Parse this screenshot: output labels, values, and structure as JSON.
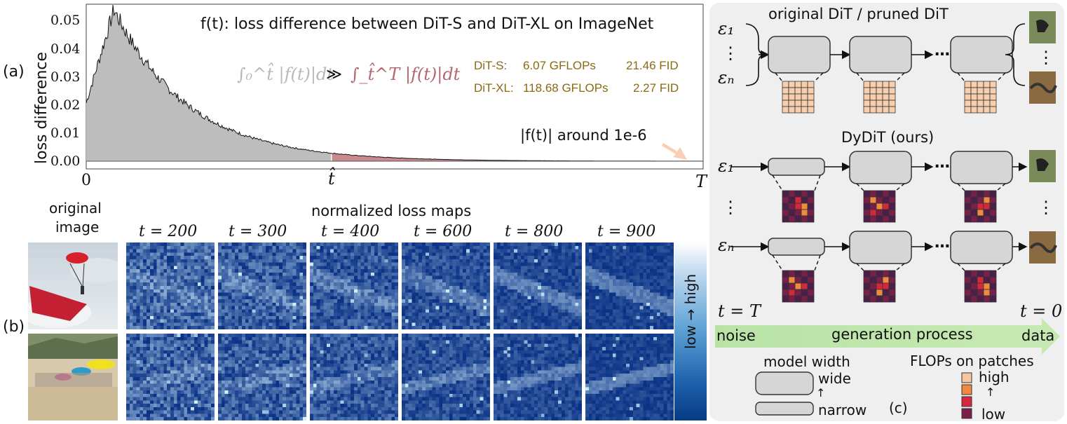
{
  "panel_labels": {
    "a": "(a)",
    "b": "(b)",
    "c": "(c)"
  },
  "panel_a": {
    "ylabel": "loss difference",
    "y_ticks": [
      "0.00",
      "0.01",
      "0.02",
      "0.03",
      "0.04",
      "0.05"
    ],
    "x_ticks": [
      "0",
      "t̂",
      "T"
    ],
    "title": "f(t): loss difference between DiT-S and DiT-XL on ImageNet",
    "integral_left": "∫₀^t̂ |f(t)|dt",
    "much_greater": "≫",
    "integral_right": "∫_t̂^T |f(t)|dt",
    "stats": [
      {
        "model": "DiT-S:",
        "gflops": "6.07 GFLOPs",
        "fid": "21.46 FID"
      },
      {
        "model": "DiT-XL:",
        "gflops": "118.68 GFLOPs",
        "fid": "2.27 FID"
      }
    ],
    "tail_note": "|f(t)| around 1e-6",
    "colors": {
      "early_fill": "#bdbdbd",
      "late_fill": "#c98a8f",
      "stats_text": "#8a6a10",
      "arrow": "#f5c9a8"
    }
  },
  "panel_b": {
    "original_label_1": "original",
    "original_label_2": "image",
    "heading": "normalized loss maps",
    "timesteps": [
      "t = 200",
      "t = 300",
      "t = 400",
      "t = 600",
      "t = 800",
      "t = 900"
    ],
    "colorbar_label": "low → high"
  },
  "panel_c": {
    "top_title": "original DiT / pruned DiT",
    "mid_title": "DyDiT (ours)",
    "eps_1": "ε₁",
    "eps_n": "εₙ",
    "vdots": "⋮",
    "ellipsis": "…",
    "t_start": "t = T",
    "t_end": "t = 0",
    "process_noise": "noise",
    "process_label": "generation process",
    "process_data": "data",
    "legend_width_title": "model width",
    "legend_wide": "wide",
    "legend_narrow": "narrow",
    "legend_flops_title": "FLOPs on patches",
    "legend_high": "high",
    "legend_low": "low",
    "up_arrow": "↑",
    "patch_colors": {
      "high": "#f7c59f",
      "mid": "#f08a3c",
      "midlow": "#d6283c",
      "low": "#7a1f4a",
      "lowest": "#4a1f4a",
      "uniform": "#f7cfae"
    }
  }
}
